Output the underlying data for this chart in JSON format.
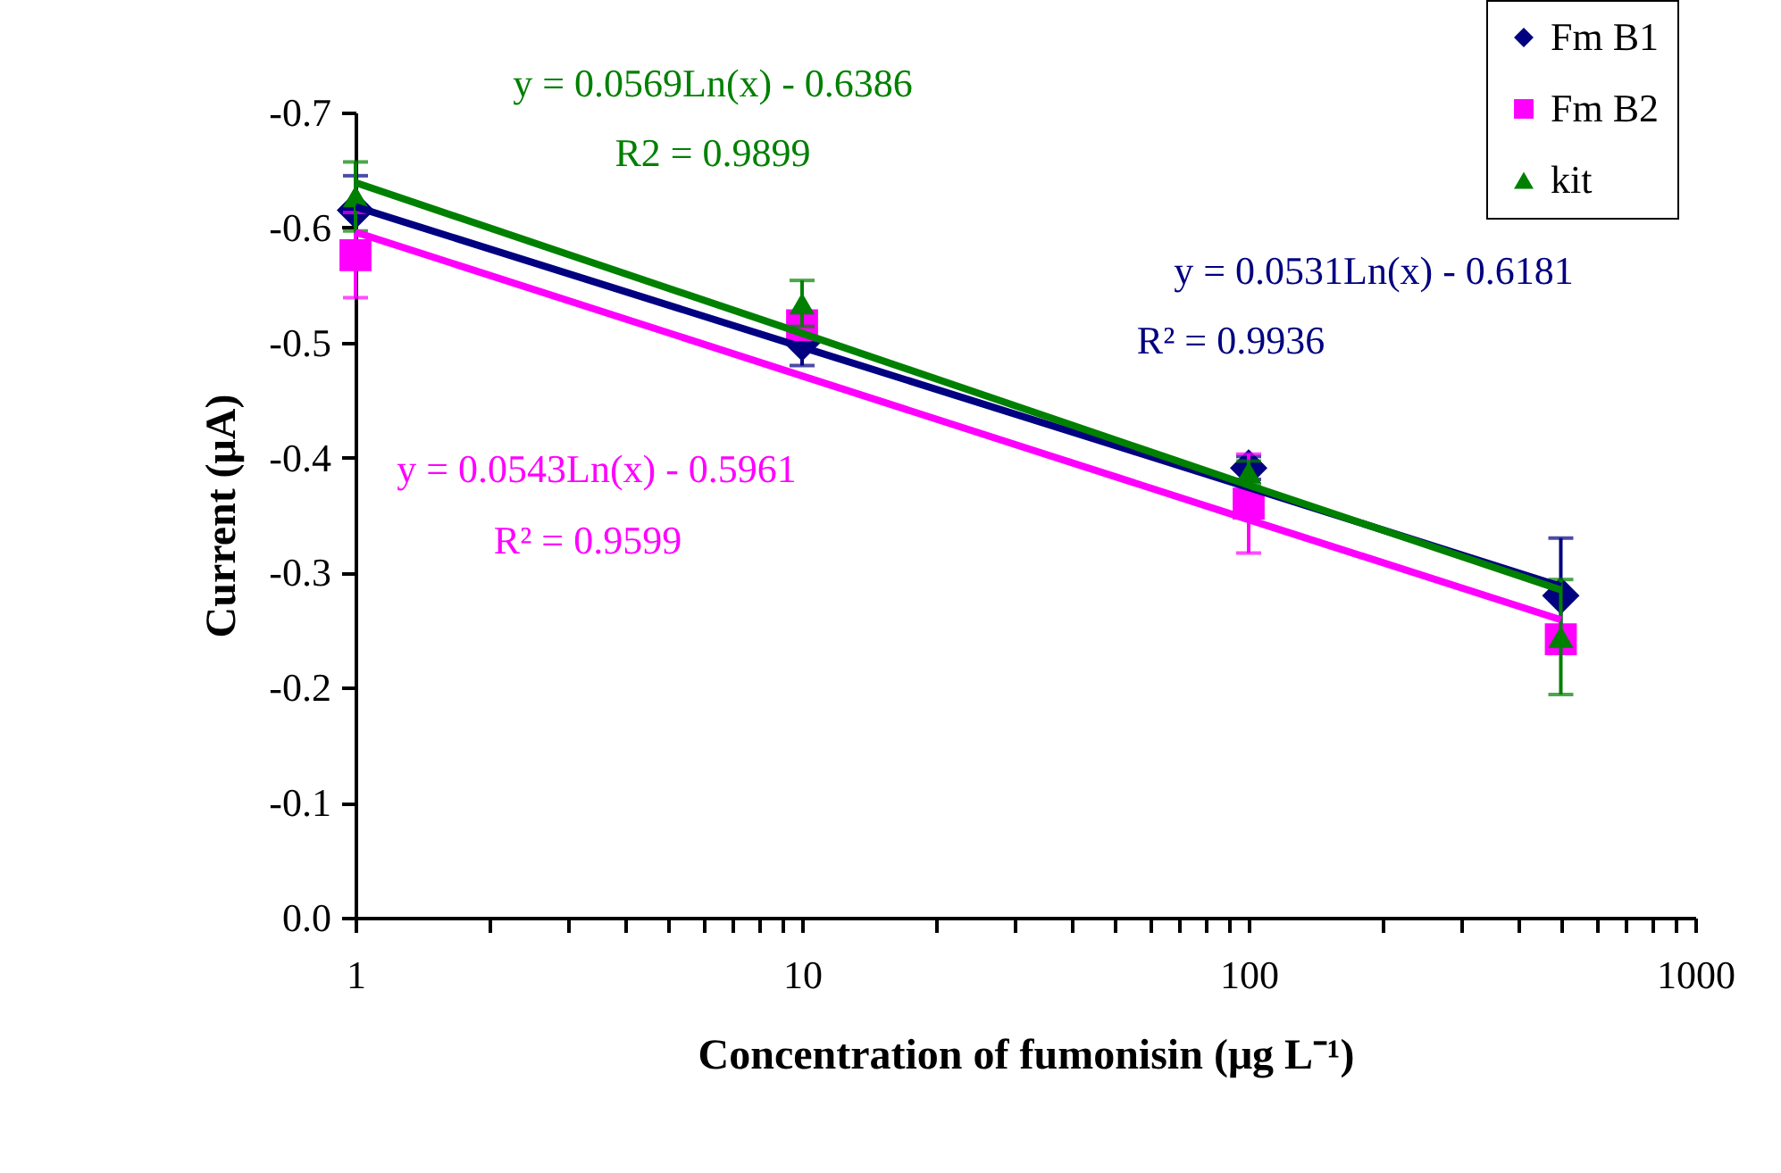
{
  "chart_data": {
    "type": "scatter",
    "xlabel": "Concentration of fumonisin (μg L⁻¹)",
    "ylabel": "Current (μA)",
    "log": "x",
    "legend": "top right",
    "xlim": [
      1,
      1000
    ],
    "xticks": [
      1,
      {
        "value": 2,
        "label": null
      },
      {
        "value": 3,
        "label": null
      },
      {
        "value": 4,
        "label": null
      },
      {
        "value": 5,
        "label": null
      },
      {
        "value": 6,
        "label": null
      },
      {
        "value": 7,
        "label": null
      },
      {
        "value": 8,
        "label": null
      },
      {
        "value": 9,
        "label": null
      },
      10,
      {
        "value": 20,
        "label": null
      },
      {
        "value": 30,
        "label": null
      },
      {
        "value": 40,
        "label": null
      },
      {
        "value": 50,
        "label": null
      },
      {
        "value": 60,
        "label": null
      },
      {
        "value": 70,
        "label": null
      },
      {
        "value": 80,
        "label": null
      },
      {
        "value": 90,
        "label": null
      },
      100,
      {
        "value": 200,
        "label": null
      },
      {
        "value": 300,
        "label": null
      },
      {
        "value": 400,
        "label": null
      },
      {
        "value": 500,
        "label": null
      },
      {
        "value": 600,
        "label": null
      },
      {
        "value": 700,
        "label": null
      },
      {
        "value": 800,
        "label": null
      },
      {
        "value": 900,
        "label": null
      },
      1000
    ],
    "ylim": [
      0,
      -0.7
    ],
    "yticks": [
      {
        "value": 0,
        "label": "0.0"
      },
      -0.1,
      -0.2,
      -0.3,
      -0.4,
      -0.5,
      -0.6,
      -0.7
    ],
    "series": [
      {
        "name": "Fm B1",
        "marker": "diamond",
        "color": "#000080",
        "x": [
          1,
          10,
          100,
          500
        ],
        "values": [
          -0.615,
          -0.5,
          -0.391,
          -0.28
        ],
        "errors": [
          0.03,
          0.02,
          0.01,
          0.05
        ]
      },
      {
        "name": "Fm B2",
        "marker": "square",
        "color": "#ff00ff",
        "x": [
          1,
          10,
          100,
          500
        ],
        "values": [
          -0.576,
          -0.515,
          -0.36,
          -0.242
        ],
        "errors": [
          0.037,
          0.01,
          0.043,
          0.01
        ]
      },
      {
        "name": "kit",
        "marker": "triangle",
        "color": "#008000",
        "x": [
          1,
          10,
          100,
          500
        ],
        "values": [
          -0.627,
          -0.534,
          -0.387,
          -0.244
        ],
        "errors": [
          0.03,
          0.02,
          0.01,
          0.05
        ]
      },
      {
        "type": "line",
        "color": "#000080",
        "x": [
          1,
          10,
          100,
          500
        ],
        "values": [
          -0.618,
          -0.496,
          -0.374,
          -0.288
        ]
      },
      {
        "type": "line",
        "color": "#ff00ff",
        "x": [
          1,
          10,
          100,
          500
        ],
        "values": [
          -0.596,
          -0.471,
          -0.346,
          -0.259
        ]
      },
      {
        "type": "line",
        "color": "#008000",
        "x": [
          1,
          10,
          100,
          500
        ],
        "values": [
          -0.639,
          -0.508,
          -0.376,
          -0.285
        ]
      }
    ],
    "annotations": [
      "y = 0.0531Ln(x) - 0.6181",
      "R² = 0.9936",
      "y = 0.0543Ln(x) - 0.5961",
      "R² = 0.9599",
      "y = 0.0569Ln(x) - 0.6386",
      "R2 = 0.9899"
    ]
  }
}
